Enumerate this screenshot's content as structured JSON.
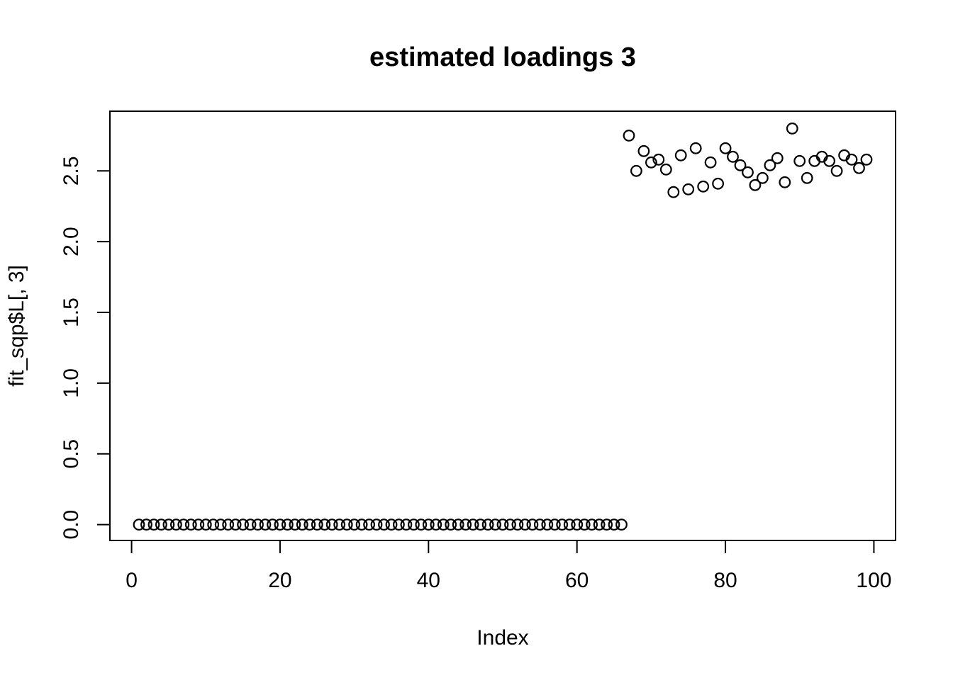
{
  "figure": {
    "background_color": "#ffffff",
    "foreground_color": "#000000"
  },
  "chart_data": {
    "type": "scatter",
    "title": "estimated loadings 3",
    "xlabel": "Index",
    "ylabel": "fit_sqp$L[, 3]",
    "marker": "open-circle",
    "marker_color": "#000000",
    "grid": false,
    "legend": null,
    "xlim": [
      -2.92,
      102.92
    ],
    "ylim": [
      -0.112,
      2.922
    ],
    "xticks": [
      0,
      20,
      40,
      60,
      80,
      100
    ],
    "yticks": [
      "0.0",
      "0.5",
      "1.0",
      "1.5",
      "2.0",
      "2.5"
    ],
    "ytick_values": [
      0.0,
      0.5,
      1.0,
      1.5,
      2.0,
      2.5
    ],
    "x": [
      1,
      2,
      3,
      4,
      5,
      6,
      7,
      8,
      9,
      10,
      11,
      12,
      13,
      14,
      15,
      16,
      17,
      18,
      19,
      20,
      21,
      22,
      23,
      24,
      25,
      26,
      27,
      28,
      29,
      30,
      31,
      32,
      33,
      34,
      35,
      36,
      37,
      38,
      39,
      40,
      41,
      42,
      43,
      44,
      45,
      46,
      47,
      48,
      49,
      50,
      51,
      52,
      53,
      54,
      55,
      56,
      57,
      58,
      59,
      60,
      61,
      62,
      63,
      64,
      65,
      66,
      67,
      68,
      69,
      70,
      71,
      72,
      73,
      74,
      75,
      76,
      77,
      78,
      79,
      80,
      81,
      82,
      83,
      84,
      85,
      86,
      87,
      88,
      89,
      90,
      91,
      92,
      93,
      94,
      95,
      96,
      97,
      98,
      99
    ],
    "y": [
      0,
      0,
      0,
      0,
      0,
      0,
      0,
      0,
      0,
      0,
      0,
      0,
      0,
      0,
      0,
      0,
      0,
      0,
      0,
      0,
      0,
      0,
      0,
      0,
      0,
      0,
      0,
      0,
      0,
      0,
      0,
      0,
      0,
      0,
      0,
      0,
      0,
      0,
      0,
      0,
      0,
      0,
      0,
      0,
      0,
      0,
      0,
      0,
      0,
      0,
      0,
      0,
      0,
      0,
      0,
      0,
      0,
      0,
      0,
      0,
      0,
      0,
      0,
      0,
      0,
      0,
      2.75,
      2.5,
      2.64,
      2.56,
      2.58,
      2.51,
      2.35,
      2.61,
      2.37,
      2.66,
      2.39,
      2.56,
      2.41,
      2.66,
      2.6,
      2.54,
      2.49,
      2.4,
      2.45,
      2.54,
      2.59,
      2.42,
      2.8,
      2.57,
      2.45,
      2.57,
      2.6,
      2.57,
      2.5,
      2.61,
      2.58,
      2.52,
      2.58
    ]
  }
}
